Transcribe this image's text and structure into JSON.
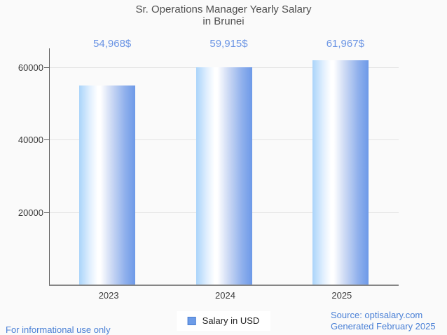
{
  "title": {
    "line1": "Sr. Operations Manager Yearly Salary",
    "line2": "in Brunei"
  },
  "chart_data": {
    "type": "bar",
    "title": "Sr. Operations Manager Yearly Salary in Brunei",
    "categories": [
      "2023",
      "2024",
      "2025"
    ],
    "series": [
      {
        "name": "Salary in USD",
        "values": [
          54968,
          59915,
          61967
        ],
        "value_labels": [
          "54,968$",
          "59,915$",
          "61,967$"
        ]
      }
    ],
    "xlabel": "",
    "ylabel": "",
    "ylim": [
      0,
      64600
    ],
    "yticks": [
      20000,
      40000,
      60000
    ],
    "ytick_labels": [
      "20000",
      "40000",
      "60000"
    ],
    "grid": true,
    "legend_position": "bottom-center",
    "bar_gradient": [
      "#aad4fa",
      "#ffffff",
      "#6d99e8"
    ]
  },
  "legend": {
    "label": "Salary in USD",
    "marker_fill": "#6d9ce8",
    "marker_border": "#4a7fd0"
  },
  "footer": {
    "left": "For informational use only",
    "source": "Source: optisalary.com",
    "generated": "Generated February 2025"
  },
  "colors": {
    "background": "#fafafa",
    "title_text": "#4f4f4f",
    "axis_text": "#3b3b3b",
    "value_text": "#6a94e4",
    "footer_text": "#4a80d6",
    "gridline": "#e4e4e4",
    "axis_line": "#616161"
  }
}
